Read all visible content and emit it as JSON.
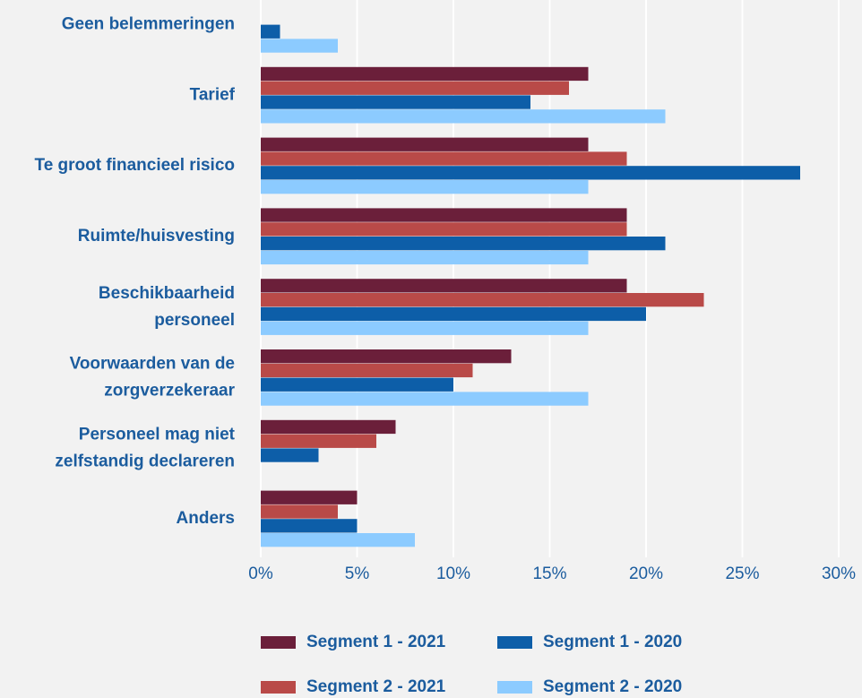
{
  "chart_data": {
    "type": "bar",
    "orientation": "horizontal",
    "categories": [
      [
        "Geen belemmeringen"
      ],
      [
        "Tarief"
      ],
      [
        "Te groot financieel risico"
      ],
      [
        "Ruimte/huisvesting"
      ],
      [
        "Beschikbaarheid",
        "personeel"
      ],
      [
        "Voorwaarden van de",
        "zorgverzekeraar"
      ],
      [
        "Personeel mag niet",
        "zelfstandig declareren"
      ],
      [
        "Anders"
      ]
    ],
    "series": [
      {
        "name": "Segment 1 - 2021",
        "color": "#6b1f3a",
        "values": [
          null,
          17,
          17,
          19,
          19,
          13,
          7,
          5
        ]
      },
      {
        "name": "Segment 2 - 2021",
        "color": "#b94a48",
        "values": [
          null,
          16,
          19,
          19,
          23,
          11,
          6,
          4
        ]
      },
      {
        "name": "Segment 1 - 2020",
        "color": "#0d5ea8",
        "values": [
          1,
          14,
          28,
          21,
          20,
          10,
          3,
          5
        ]
      },
      {
        "name": "Segment 2 - 2020",
        "color": "#8ccbff",
        "values": [
          4,
          21,
          17,
          17,
          17,
          17,
          null,
          8
        ]
      }
    ],
    "xlim": [
      0,
      30
    ],
    "xticks": [
      {
        "value": 0,
        "label": "0%"
      },
      {
        "value": 5,
        "label": "5%"
      },
      {
        "value": 10,
        "label": "10%"
      },
      {
        "value": 15,
        "label": "15%"
      },
      {
        "value": 20,
        "label": "20%"
      },
      {
        "value": 25,
        "label": "25%"
      },
      {
        "value": 30,
        "label": "30%"
      }
    ],
    "grid": true
  }
}
